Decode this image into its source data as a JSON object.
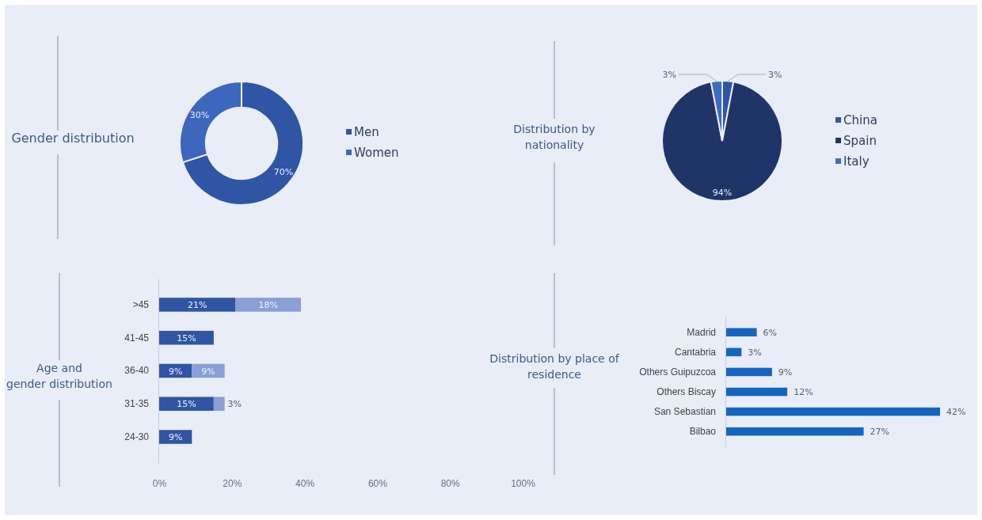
{
  "chart_data": [
    {
      "type": "donut",
      "title": "Gender distribution",
      "categories": [
        "Men",
        "Women"
      ],
      "values": [
        70,
        30
      ],
      "colors": [
        "#2f55a4",
        "#3d67bd"
      ],
      "value_labels": [
        "70%",
        "30%"
      ],
      "legend": "right"
    },
    {
      "type": "pie",
      "title": "Distribution by nationality",
      "categories": [
        "China",
        "Spain",
        "Italy"
      ],
      "values": [
        3,
        94,
        3
      ],
      "colors": [
        "#2d56a6",
        "#1f3567",
        "#3c6cc6"
      ],
      "value_labels": [
        "3%",
        "94%",
        "3%"
      ],
      "legend": "right"
    },
    {
      "type": "bar",
      "title": "Age and gender distribution",
      "orientation": "horizontal",
      "stacked": true,
      "categories": [
        ">45",
        "41-45",
        "36-40",
        "31-35",
        "24-30"
      ],
      "series": [
        {
          "color": "#2f55a4",
          "values": [
            21,
            15,
            9,
            15,
            9
          ],
          "value_labels": [
            "21%",
            "15%",
            "9%",
            "15%",
            "9%"
          ]
        },
        {
          "color": "#8a9fd6",
          "values": [
            18,
            null,
            9,
            3,
            null
          ],
          "value_labels": [
            "18%",
            null,
            "9%",
            "3%",
            null
          ]
        }
      ],
      "xlim": [
        0,
        100
      ],
      "xticks": [
        {
          "value": 0,
          "label": "0%"
        },
        {
          "value": 20,
          "label": "20%"
        },
        {
          "value": 40,
          "label": "40%"
        },
        {
          "value": 60,
          "label": "60%"
        },
        {
          "value": 80,
          "label": "80%"
        },
        {
          "value": 100,
          "label": "100%"
        }
      ],
      "tick_labels": "y"
    },
    {
      "type": "bar",
      "title": "Distribution by place of residence",
      "orientation": "horizontal",
      "categories": [
        "Madrid",
        "Cantabria",
        "Others Guipuzcoa",
        "Others Biscay",
        "San Sebastian",
        "Bilbao"
      ],
      "values": [
        6,
        3,
        9,
        12,
        42,
        27
      ],
      "color": "#1565c0",
      "value_labels": [
        "6%",
        "3%",
        "9%",
        "12%",
        "42%",
        "27%"
      ]
    }
  ]
}
